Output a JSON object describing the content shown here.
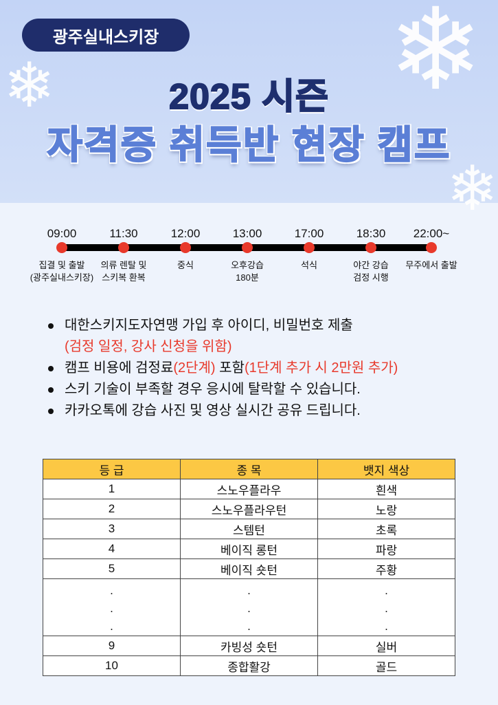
{
  "header": {
    "badge": "광주실내스키장",
    "title": "2025 시즌",
    "subtitle": "자격증 취득반 현장 캠프"
  },
  "timeline": [
    {
      "time": "09:00",
      "label": [
        "집결 및 출발",
        "(광주실내스키장)"
      ]
    },
    {
      "time": "11:30",
      "label": [
        "의류 렌탈 및",
        "스키복 환복"
      ]
    },
    {
      "time": "12:00",
      "label": [
        "중식",
        ""
      ]
    },
    {
      "time": "13:00",
      "label": [
        "오후강습",
        "180분"
      ]
    },
    {
      "time": "17:00",
      "label": [
        "석식",
        ""
      ]
    },
    {
      "time": "18:30",
      "label": [
        "야간 강습",
        "검정 시행"
      ]
    },
    {
      "time": "22:00~",
      "label": [
        "무주에서 출발",
        ""
      ]
    }
  ],
  "notes": {
    "n1": "대한스키지도자연맹  가입 후 아이디, 비밀번호 제출",
    "n1b": "(검정 일정, 강사 신청을 위함)",
    "n2a": "캠프 비용에 검정료",
    "n2b": "(2단계)",
    "n2c": " 포함",
    "n2d": "(1단계 추가 시 2만원 추가)",
    "n3": "스키 기술이 부족할 경우 응시에 탈락할 수 있습니다.",
    "n4": "카카오톡에 강습 사진 및 영상 실시간 공유 드립니다."
  },
  "table": {
    "headers": [
      "등  급",
      "종  목",
      "뱃지 색상"
    ],
    "rows": [
      [
        "1",
        "스노우플라우",
        "흰색"
      ],
      [
        "2",
        "스노우플라우턴",
        "노랑"
      ],
      [
        "3",
        "스템턴",
        "초록"
      ],
      [
        "4",
        "베이직 롱턴",
        "파랑"
      ],
      [
        "5",
        "베이직 숏턴",
        "주황"
      ],
      [
        ".\n.\n.",
        ".\n.\n.",
        ".\n.\n."
      ],
      [
        "9",
        "카빙성 숏턴",
        "실버"
      ],
      [
        "10",
        "종합활강",
        "골드"
      ]
    ]
  },
  "colors": {
    "navy": "#1e2f6e",
    "accent_blue": "#5b7fd6",
    "red": "#e8392b",
    "table_header": "#fcc844"
  }
}
